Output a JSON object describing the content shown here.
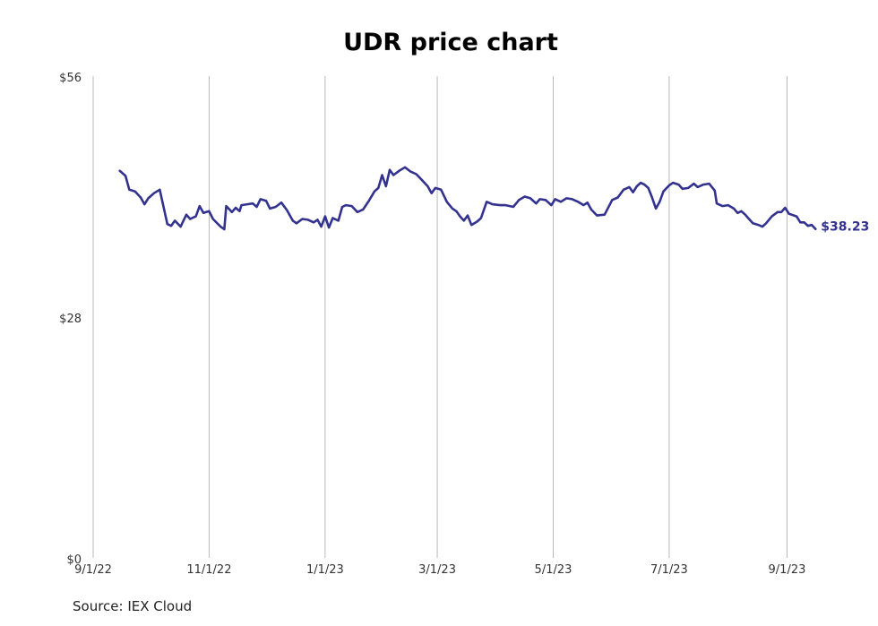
{
  "chart_data": {
    "type": "line",
    "title": "UDR price chart",
    "source": "Source: IEX Cloud",
    "ylim": [
      0,
      56
    ],
    "y_ticks": [
      {
        "label": "$0",
        "value": 0
      },
      {
        "label": "$28",
        "value": 28
      },
      {
        "label": "$56",
        "value": 56
      }
    ],
    "x_range": [
      "2022-09-01",
      "2023-09-30"
    ],
    "x_ticks": [
      {
        "label": "9/1/22",
        "date": "2022-09-01"
      },
      {
        "label": "11/1/22",
        "date": "2022-11-01"
      },
      {
        "label": "1/1/23",
        "date": "2023-01-01"
      },
      {
        "label": "3/1/23",
        "date": "2023-03-01"
      },
      {
        "label": "5/1/23",
        "date": "2023-05-01"
      },
      {
        "label": "7/1/23",
        "date": "2023-07-01"
      },
      {
        "label": "9/1/23",
        "date": "2023-09-01"
      }
    ],
    "vertical_grid": true,
    "line_color": "#33338f",
    "last_value_label": "$38.23",
    "series": [
      {
        "values": [
          [
            "2022-09-15",
            45.0
          ],
          [
            "2022-09-18",
            44.4
          ],
          [
            "2022-09-20",
            42.8
          ],
          [
            "2022-09-23",
            42.6
          ],
          [
            "2022-09-26",
            41.9
          ],
          [
            "2022-09-28",
            41.1
          ],
          [
            "2022-09-30",
            41.8
          ],
          [
            "2022-10-03",
            42.4
          ],
          [
            "2022-10-06",
            42.8
          ],
          [
            "2022-10-10",
            38.8
          ],
          [
            "2022-10-12",
            38.6
          ],
          [
            "2022-10-14",
            39.2
          ],
          [
            "2022-10-17",
            38.5
          ],
          [
            "2022-10-20",
            39.9
          ],
          [
            "2022-10-22",
            39.4
          ],
          [
            "2022-10-25",
            39.7
          ],
          [
            "2022-10-27",
            40.9
          ],
          [
            "2022-10-29",
            40.1
          ],
          [
            "2022-11-01",
            40.3
          ],
          [
            "2022-11-03",
            39.4
          ],
          [
            "2022-11-07",
            38.5
          ],
          [
            "2022-11-09",
            38.2
          ],
          [
            "2022-11-10",
            40.9
          ],
          [
            "2022-11-13",
            40.2
          ],
          [
            "2022-11-15",
            40.7
          ],
          [
            "2022-11-17",
            40.3
          ],
          [
            "2022-11-18",
            41.0
          ],
          [
            "2022-11-21",
            41.1
          ],
          [
            "2022-11-24",
            41.2
          ],
          [
            "2022-11-26",
            40.8
          ],
          [
            "2022-11-28",
            41.7
          ],
          [
            "2022-12-01",
            41.5
          ],
          [
            "2022-12-03",
            40.6
          ],
          [
            "2022-12-06",
            40.8
          ],
          [
            "2022-12-09",
            41.3
          ],
          [
            "2022-12-12",
            40.4
          ],
          [
            "2022-12-15",
            39.2
          ],
          [
            "2022-12-17",
            38.9
          ],
          [
            "2022-12-20",
            39.4
          ],
          [
            "2022-12-23",
            39.3
          ],
          [
            "2022-12-26",
            39.0
          ],
          [
            "2022-12-28",
            39.3
          ],
          [
            "2022-12-30",
            38.5
          ],
          [
            "2023-01-01",
            39.7
          ],
          [
            "2023-01-03",
            38.4
          ],
          [
            "2023-01-05",
            39.5
          ],
          [
            "2023-01-08",
            39.2
          ],
          [
            "2023-01-10",
            40.8
          ],
          [
            "2023-01-12",
            41.0
          ],
          [
            "2023-01-15",
            40.9
          ],
          [
            "2023-01-18",
            40.2
          ],
          [
            "2023-01-21",
            40.5
          ],
          [
            "2023-01-24",
            41.5
          ],
          [
            "2023-01-27",
            42.6
          ],
          [
            "2023-01-29",
            43.0
          ],
          [
            "2023-01-31",
            44.5
          ],
          [
            "2023-02-02",
            43.2
          ],
          [
            "2023-02-04",
            45.1
          ],
          [
            "2023-02-06",
            44.5
          ],
          [
            "2023-02-09",
            45.0
          ],
          [
            "2023-02-12",
            45.4
          ],
          [
            "2023-02-15",
            44.9
          ],
          [
            "2023-02-18",
            44.6
          ],
          [
            "2023-02-21",
            43.9
          ],
          [
            "2023-02-24",
            43.2
          ],
          [
            "2023-02-26",
            42.4
          ],
          [
            "2023-02-28",
            43.0
          ],
          [
            "2023-03-03",
            42.8
          ],
          [
            "2023-03-06",
            41.4
          ],
          [
            "2023-03-09",
            40.6
          ],
          [
            "2023-03-11",
            40.3
          ],
          [
            "2023-03-13",
            39.7
          ],
          [
            "2023-03-15",
            39.2
          ],
          [
            "2023-03-17",
            39.8
          ],
          [
            "2023-03-19",
            38.7
          ],
          [
            "2023-03-22",
            39.1
          ],
          [
            "2023-03-24",
            39.5
          ],
          [
            "2023-03-27",
            41.4
          ],
          [
            "2023-03-30",
            41.1
          ],
          [
            "2023-04-03",
            41.0
          ],
          [
            "2023-04-06",
            41.0
          ],
          [
            "2023-04-10",
            40.8
          ],
          [
            "2023-04-13",
            41.6
          ],
          [
            "2023-04-16",
            42.0
          ],
          [
            "2023-04-19",
            41.8
          ],
          [
            "2023-04-22",
            41.2
          ],
          [
            "2023-04-24",
            41.7
          ],
          [
            "2023-04-27",
            41.6
          ],
          [
            "2023-04-30",
            41.0
          ],
          [
            "2023-05-02",
            41.7
          ],
          [
            "2023-05-05",
            41.4
          ],
          [
            "2023-05-08",
            41.8
          ],
          [
            "2023-05-11",
            41.7
          ],
          [
            "2023-05-14",
            41.4
          ],
          [
            "2023-05-17",
            41.0
          ],
          [
            "2023-05-19",
            41.3
          ],
          [
            "2023-05-21",
            40.5
          ],
          [
            "2023-05-24",
            39.8
          ],
          [
            "2023-05-28",
            39.9
          ],
          [
            "2023-06-01",
            41.6
          ],
          [
            "2023-06-04",
            41.9
          ],
          [
            "2023-06-07",
            42.8
          ],
          [
            "2023-06-10",
            43.1
          ],
          [
            "2023-06-12",
            42.5
          ],
          [
            "2023-06-14",
            43.2
          ],
          [
            "2023-06-16",
            43.6
          ],
          [
            "2023-06-18",
            43.4
          ],
          [
            "2023-06-20",
            43.0
          ],
          [
            "2023-06-22",
            41.9
          ],
          [
            "2023-06-24",
            40.6
          ],
          [
            "2023-06-26",
            41.4
          ],
          [
            "2023-06-28",
            42.6
          ],
          [
            "2023-07-01",
            43.3
          ],
          [
            "2023-07-03",
            43.6
          ],
          [
            "2023-07-06",
            43.4
          ],
          [
            "2023-07-08",
            42.9
          ],
          [
            "2023-07-11",
            43.0
          ],
          [
            "2023-07-14",
            43.5
          ],
          [
            "2023-07-16",
            43.1
          ],
          [
            "2023-07-19",
            43.4
          ],
          [
            "2023-07-22",
            43.5
          ],
          [
            "2023-07-25",
            42.7
          ],
          [
            "2023-07-26",
            41.2
          ],
          [
            "2023-07-29",
            40.9
          ],
          [
            "2023-08-01",
            41.0
          ],
          [
            "2023-08-04",
            40.6
          ],
          [
            "2023-08-06",
            40.1
          ],
          [
            "2023-08-08",
            40.3
          ],
          [
            "2023-08-10",
            39.9
          ],
          [
            "2023-08-12",
            39.4
          ],
          [
            "2023-08-14",
            38.9
          ],
          [
            "2023-08-17",
            38.7
          ],
          [
            "2023-08-19",
            38.5
          ],
          [
            "2023-08-21",
            38.9
          ],
          [
            "2023-08-24",
            39.7
          ],
          [
            "2023-08-27",
            40.2
          ],
          [
            "2023-08-29",
            40.2
          ],
          [
            "2023-08-31",
            40.7
          ],
          [
            "2023-09-02",
            40.0
          ],
          [
            "2023-09-06",
            39.7
          ],
          [
            "2023-09-08",
            39.0
          ],
          [
            "2023-09-10",
            39.0
          ],
          [
            "2023-09-12",
            38.6
          ],
          [
            "2023-09-14",
            38.7
          ],
          [
            "2023-09-16",
            38.23
          ]
        ]
      }
    ]
  }
}
